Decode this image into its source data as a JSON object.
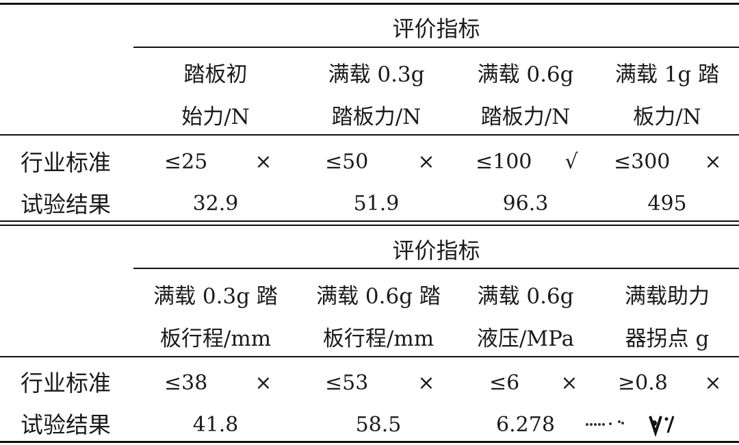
{
  "table1": {
    "group_header": "评价指标",
    "columns": [
      {
        "line1": "踏板初",
        "line2": "始力/N"
      },
      {
        "line1": "满载 0.3g",
        "line2": "踏板力/N"
      },
      {
        "line1": "满载 0.6g",
        "line2": "踏板力/N"
      },
      {
        "line1": "满载 1g 踏",
        "line2": "板力/N"
      }
    ],
    "rows": [
      {
        "label": "行业标准",
        "cells": [
          {
            "value": "≤25",
            "mark": "×"
          },
          {
            "value": "≤50",
            "mark": "×"
          },
          {
            "value": "≤100",
            "mark": "√"
          },
          {
            "value": "≤300",
            "mark": "×"
          }
        ]
      },
      {
        "label": "试验结果",
        "values": [
          "32.9",
          "51.9",
          "96.3",
          "495"
        ]
      }
    ]
  },
  "table2": {
    "group_header": "评价指标",
    "columns": [
      {
        "line1": "满载 0.3g 踏",
        "line2": "板行程/mm"
      },
      {
        "line1": "满载 0.6g 踏",
        "line2": "板行程/mm"
      },
      {
        "line1": "满载 0.6g",
        "line2": "液压/MPa"
      },
      {
        "line1": "满载助力",
        "line2": "器拐点 g"
      }
    ],
    "rows": [
      {
        "label": "行业标准",
        "cells": [
          {
            "value": "≤38",
            "mark": "×"
          },
          {
            "value": "≤53",
            "mark": "×"
          },
          {
            "value": "≤6",
            "mark": "×"
          },
          {
            "value": "≥0.8",
            "mark": "×"
          }
        ]
      },
      {
        "label": "试验结果",
        "values": [
          "41.8",
          "58.5",
          "6.278",
          ""
        ]
      }
    ]
  }
}
